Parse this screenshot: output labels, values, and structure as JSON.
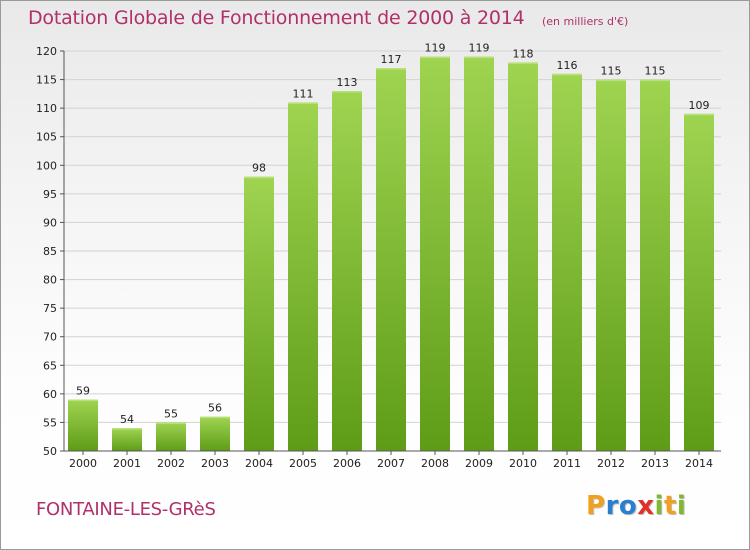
{
  "header": {
    "title": "Dotation Globale de Fonctionnement de 2000 à 2014",
    "subtitle": "(en milliers d'€)"
  },
  "footer": {
    "commune": "FONTAINE-LES-GRèS",
    "logo": {
      "letters": [
        "P",
        "r",
        "o",
        "x",
        "i",
        "t",
        "i"
      ],
      "colors": [
        "#f0a020",
        "#2a7fd0",
        "#2a7fd0",
        "#e0302a",
        "#80b830",
        "#f0a020",
        "#80b830"
      ]
    }
  },
  "chart_data": {
    "type": "bar",
    "categories": [
      "2000",
      "2001",
      "2002",
      "2003",
      "2004",
      "2005",
      "2006",
      "2007",
      "2008",
      "2009",
      "2010",
      "2011",
      "2012",
      "2013",
      "2014"
    ],
    "values": [
      59,
      54,
      55,
      56,
      98,
      111,
      113,
      117,
      119,
      119,
      118,
      116,
      115,
      115,
      109
    ],
    "data_labels": [
      "59",
      "54",
      "55",
      "56",
      "98",
      "111",
      "113",
      "117",
      "119",
      "119",
      "118",
      "116",
      "115",
      "115",
      "109"
    ],
    "ylim": [
      50,
      120
    ],
    "yticks": [
      50,
      55,
      60,
      65,
      70,
      75,
      80,
      85,
      90,
      95,
      100,
      105,
      110,
      115,
      120
    ],
    "grid": true,
    "bar_color": "#8cc63f",
    "bar_color_dark": "#5a9a18"
  }
}
